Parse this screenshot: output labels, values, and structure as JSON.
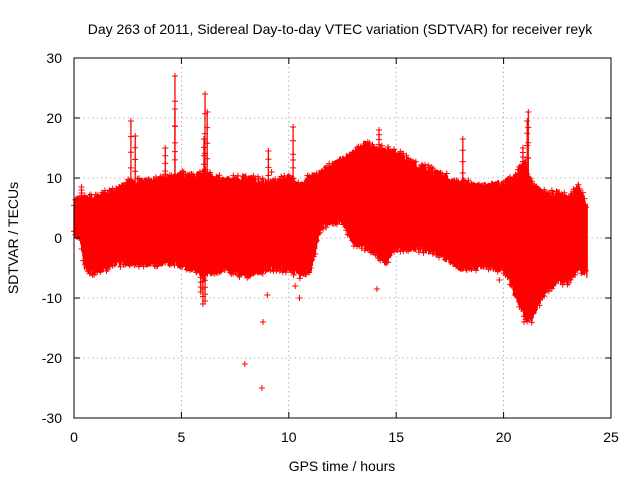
{
  "chart_data": {
    "type": "scatter",
    "title": "Day 263 of 2011, Sidereal Day-to-day VTEC variation (SDTVAR) for receiver reyk",
    "xlabel": "GPS time / hours",
    "ylabel": "SDTVAR / TECUs",
    "xlim": [
      0,
      25
    ],
    "ylim": [
      -30,
      30
    ],
    "xticks": [
      0,
      5,
      10,
      15,
      20,
      25
    ],
    "yticks": [
      -30,
      -20,
      -10,
      0,
      10,
      20,
      30
    ],
    "grid": true,
    "marker": "+",
    "color": "#ff0000",
    "envelope": {
      "x": [
        0.0,
        0.3,
        0.5,
        1.0,
        2.0,
        2.5,
        3.5,
        4.5,
        5.0,
        5.6,
        6.0,
        6.5,
        7.0,
        8.0,
        9.0,
        10.0,
        10.5,
        11.0,
        11.5,
        12.0,
        12.5,
        13.0,
        13.5,
        14.0,
        14.5,
        15.0,
        16.0,
        17.0,
        18.0,
        19.0,
        20.0,
        20.5,
        21.0,
        21.3,
        21.6,
        22.0,
        22.5,
        23.0,
        23.5,
        23.9
      ],
      "upper": [
        6.0,
        6.5,
        6.5,
        6.5,
        8.0,
        9.0,
        9.5,
        10.0,
        10.5,
        10.0,
        11.0,
        10.0,
        9.5,
        10.0,
        9.0,
        10.0,
        8.5,
        10.0,
        11.0,
        12.0,
        13.0,
        14.0,
        15.5,
        15.0,
        14.5,
        14.0,
        12.0,
        10.5,
        9.0,
        8.5,
        9.0,
        10.0,
        12.5,
        9.0,
        8.0,
        7.0,
        7.5,
        6.5,
        8.5,
        5.0
      ],
      "lower": [
        1.0,
        0.0,
        -5.0,
        -5.5,
        -4.0,
        -4.0,
        -4.0,
        -4.0,
        -4.5,
        -5.0,
        -6.0,
        -5.5,
        -5.0,
        -6.0,
        -5.0,
        -5.0,
        -6.0,
        -5.5,
        2.0,
        3.0,
        3.0,
        -0.5,
        -1.5,
        -2.0,
        -4.0,
        -1.5,
        -1.5,
        -2.5,
        -5.0,
        -4.5,
        -5.0,
        -9.0,
        -13.0,
        -13.5,
        -11.0,
        -8.5,
        -7.0,
        -7.0,
        -5.0,
        -6.0
      ]
    },
    "spikes": [
      {
        "x": 0.35,
        "y": 8.5
      },
      {
        "x": 2.65,
        "y": 19.5
      },
      {
        "x": 2.85,
        "y": 17.0
      },
      {
        "x": 4.25,
        "y": 15.0
      },
      {
        "x": 4.7,
        "y": 27.0
      },
      {
        "x": 4.7,
        "y": 21.5
      },
      {
        "x": 6.1,
        "y": 24.0
      },
      {
        "x": 6.2,
        "y": 21.0
      },
      {
        "x": 6.05,
        "y": 16.5
      },
      {
        "x": 9.05,
        "y": 14.5
      },
      {
        "x": 10.2,
        "y": 18.5
      },
      {
        "x": 14.2,
        "y": 18.0
      },
      {
        "x": 18.1,
        "y": 16.5
      },
      {
        "x": 21.15,
        "y": 21.0
      },
      {
        "x": 21.1,
        "y": 19.5
      },
      {
        "x": 20.9,
        "y": 15.0
      },
      {
        "x": 5.9,
        "y": -9.0
      },
      {
        "x": 6.1,
        "y": -10.5
      },
      {
        "x": 6.0,
        "y": -11.0
      }
    ],
    "outliers": [
      {
        "x": 7.95,
        "y": -21.0
      },
      {
        "x": 8.75,
        "y": -25.0
      },
      {
        "x": 8.8,
        "y": -14.0
      },
      {
        "x": 9.0,
        "y": -9.5
      },
      {
        "x": 10.3,
        "y": -8.0
      },
      {
        "x": 10.5,
        "y": -10.0
      },
      {
        "x": 14.1,
        "y": -8.5
      },
      {
        "x": 14.2,
        "y": 13.5
      },
      {
        "x": 18.2,
        "y": 9.5
      },
      {
        "x": 15.2,
        "y": 12.0
      },
      {
        "x": 10.2,
        "y": 13.0
      },
      {
        "x": 8.0,
        "y": 10.0
      },
      {
        "x": 9.2,
        "y": 11.0
      },
      {
        "x": 20.95,
        "y": -14.0
      },
      {
        "x": 19.8,
        "y": -7.0
      }
    ]
  }
}
